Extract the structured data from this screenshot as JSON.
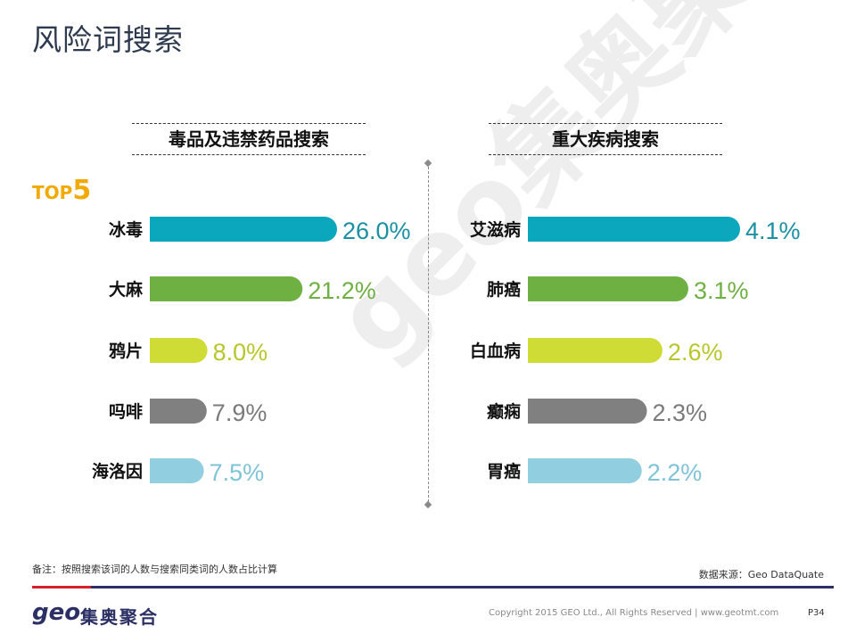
{
  "title": "风险词搜索",
  "watermark": "geo集奥聚合",
  "top5": {
    "t": "TOP",
    "n": "5"
  },
  "chart_data": [
    {
      "type": "bar",
      "orientation": "horizontal",
      "title": "毒品及违禁药品搜索",
      "categories": [
        "冰毒",
        "大麻",
        "鸦片",
        "吗啡",
        "海洛因"
      ],
      "values": [
        26.0,
        21.2,
        8.0,
        7.9,
        7.5
      ],
      "labels": [
        "26.0%",
        "21.2%",
        "8.0%",
        "7.9%",
        "7.5%"
      ],
      "colors": [
        "#0aa7bd",
        "#6fb043",
        "#cfdc36",
        "#808080",
        "#91cfe0"
      ]
    },
    {
      "type": "bar",
      "orientation": "horizontal",
      "title": "重大疾病搜索",
      "categories": [
        "艾滋病",
        "肺癌",
        "白血病",
        "癫痫",
        "胃癌"
      ],
      "values": [
        4.1,
        3.1,
        2.6,
        2.3,
        2.2
      ],
      "labels": [
        "4.1%",
        "3.1%",
        "2.6%",
        "2.3%",
        "2.2%"
      ],
      "colors": [
        "#0aa7bd",
        "#6fb043",
        "#cfdc36",
        "#808080",
        "#91cfe0"
      ]
    }
  ],
  "label_colors": [
    "#1b8fa3",
    "#6fb043",
    "#b8c62a",
    "#7a7a7a",
    "#7fc3d8"
  ],
  "footer": {
    "note": "备注：按照搜索该词的人数与搜索同类词的人数占比计算",
    "source": "数据来源：Geo DataQuate",
    "logo": "geo",
    "logo_cn": "集奥聚合",
    "copyright": "Copyright 2015 GEO Ltd., All Rights Reserved   |   www.geotmt.com",
    "page": "P34"
  }
}
